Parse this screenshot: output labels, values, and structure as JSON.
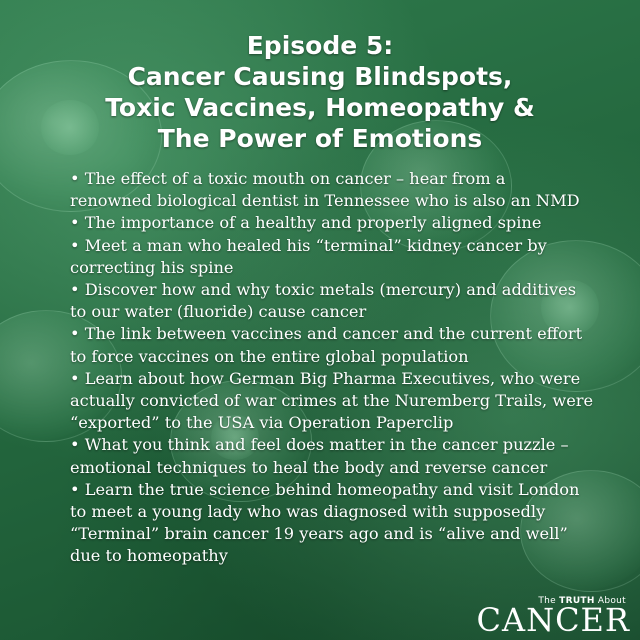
{
  "title_lines": [
    "Episode 5:",
    "Cancer Causing Blindspots,",
    "Toxic Vaccines, Homeopathy &",
    "The Power of Emotions"
  ],
  "bullet_lines": [
    "• The effect of a toxic mouth on cancer – hear from a",
    "renowned biological dentist in Tennessee who is also an NMD",
    "• The importance of a healthy and properly aligned spine",
    "• Meet a man who healed his “terminal” kidney cancer by",
    "correcting his spine",
    "• Discover how and why toxic metals (mercury) and additives",
    "to our water (fluoride) cause cancer",
    "• The link between vaccines and cancer and the current effort",
    "to force vaccines on the entire global population",
    "• Learn about how German Big Pharma Executives, who were",
    "actually convicted of war crimes at the Nuremberg Trails, were",
    "“exported” to the USA via Operation Paperclip",
    "• What you think and feel does matter in the cancer puzzle –",
    "emotional techniques to heal the body and reverse cancer",
    "• Learn the true science behind homeopathy and visit London",
    "to meet a young lady who was diagnosed with supposedly",
    "“Terminal” brain cancer 19 years ago and is “alive and well”",
    "due to homeopathy"
  ],
  "logo": {
    "top_the": "The",
    "top_truth": "TRUTH",
    "top_about": "About",
    "main": "CANCER"
  },
  "colors": {
    "background": "#256a40",
    "text": "#ffffff"
  }
}
